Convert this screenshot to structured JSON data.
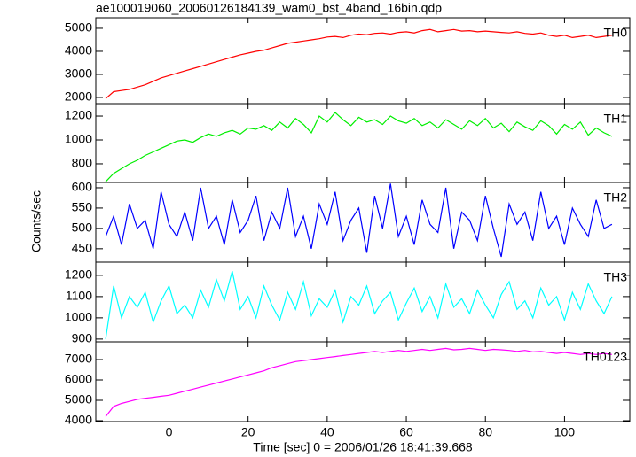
{
  "chart_data": {
    "type": "line",
    "title": "ae100019060_20060126184139_wam0_bst_4band_16bin.qdp",
    "xlabel": "Time [sec] 0 = 2006/01/26 18:41:39.668",
    "ylabel": "Counts/sec",
    "xlim": [
      -18.5,
      116.5
    ],
    "xticks": [
      0,
      20,
      40,
      60,
      80,
      100
    ],
    "x": [
      -16,
      -14,
      -12,
      -10,
      -8,
      -6,
      -4,
      -2,
      0,
      2,
      4,
      6,
      8,
      10,
      12,
      14,
      16,
      18,
      20,
      22,
      24,
      26,
      28,
      30,
      32,
      34,
      36,
      38,
      40,
      42,
      44,
      46,
      48,
      50,
      52,
      54,
      56,
      58,
      60,
      62,
      64,
      66,
      68,
      70,
      72,
      74,
      76,
      78,
      80,
      82,
      84,
      86,
      88,
      90,
      92,
      94,
      96,
      98,
      100,
      102,
      104,
      106,
      108,
      110,
      112
    ],
    "panels": [
      {
        "name": "TH0",
        "color": "#ff0000",
        "ylim": [
          1730,
          5460
        ],
        "yticks": [
          2000,
          3000,
          4000,
          5000
        ],
        "values": [
          1950,
          2250,
          2300,
          2350,
          2450,
          2550,
          2700,
          2850,
          2950,
          3050,
          3150,
          3250,
          3350,
          3450,
          3550,
          3650,
          3750,
          3850,
          3920,
          4000,
          4050,
          4150,
          4250,
          4350,
          4400,
          4450,
          4500,
          4550,
          4620,
          4650,
          4600,
          4700,
          4750,
          4720,
          4780,
          4800,
          4750,
          4820,
          4850,
          4800,
          4900,
          4950,
          4850,
          4900,
          4950,
          4880,
          4900,
          4850,
          4880,
          4850,
          4820,
          4800,
          4850,
          4780,
          4750,
          4800,
          4700,
          4650,
          4700,
          4600,
          4650,
          4700,
          4600,
          4650,
          4700
        ]
      },
      {
        "name": "TH1",
        "color": "#00ee00",
        "ylim": [
          644,
          1304
        ],
        "yticks": [
          800,
          1000,
          1200
        ],
        "values": [
          650,
          720,
          760,
          800,
          830,
          870,
          900,
          930,
          960,
          990,
          1000,
          980,
          1020,
          1050,
          1030,
          1060,
          1080,
          1050,
          1100,
          1090,
          1120,
          1080,
          1150,
          1100,
          1180,
          1130,
          1060,
          1200,
          1150,
          1230,
          1170,
          1120,
          1190,
          1150,
          1170,
          1130,
          1200,
          1160,
          1140,
          1180,
          1120,
          1150,
          1100,
          1170,
          1130,
          1090,
          1160,
          1120,
          1180,
          1100,
          1140,
          1070,
          1150,
          1110,
          1080,
          1160,
          1120,
          1050,
          1130,
          1090,
          1150,
          1040,
          1100,
          1060,
          1030
        ]
      },
      {
        "name": "TH2",
        "color": "#0000ff",
        "ylim": [
          417,
          613
        ],
        "yticks": [
          450,
          500,
          550,
          600
        ],
        "values": [
          480,
          530,
          460,
          560,
          500,
          520,
          450,
          590,
          510,
          480,
          540,
          470,
          600,
          500,
          530,
          460,
          570,
          490,
          520,
          580,
          470,
          540,
          500,
          600,
          480,
          530,
          450,
          560,
          510,
          590,
          470,
          520,
          550,
          440,
          580,
          500,
          610,
          480,
          530,
          460,
          570,
          510,
          490,
          600,
          450,
          540,
          520,
          470,
          580,
          500,
          430,
          560,
          510,
          540,
          470,
          590,
          500,
          530,
          460,
          550,
          510,
          480,
          570,
          500,
          510
        ]
      },
      {
        "name": "TH3",
        "color": "#00ffff",
        "ylim": [
          887,
          1262
        ],
        "yticks": [
          900,
          1000,
          1100,
          1200
        ],
        "values": [
          900,
          1150,
          1000,
          1100,
          1050,
          1120,
          980,
          1080,
          1150,
          1020,
          1060,
          1000,
          1130,
          1050,
          1180,
          1080,
          1220,
          1040,
          1100,
          1000,
          1150,
          1060,
          990,
          1120,
          1040,
          1170,
          1010,
          1090,
          1050,
          1130,
          980,
          1100,
          1060,
          1150,
          1020,
          1080,
          1120,
          990,
          1070,
          1140,
          1030,
          1100,
          1000,
          1160,
          1050,
          1090,
          1020,
          1130,
          1060,
          1000,
          1110,
          1170,
          1040,
          1080,
          1000,
          1140,
          1060,
          1100,
          990,
          1120,
          1040,
          1160,
          1080,
          1020,
          1100
        ]
      },
      {
        "name": "TH0123",
        "color": "#ff00ff",
        "ylim": [
          3957,
          7870
        ],
        "yticks": [
          4000,
          5000,
          6000,
          7000
        ],
        "values": [
          4200,
          4700,
          4850,
          4950,
          5050,
          5100,
          5150,
          5200,
          5250,
          5350,
          5450,
          5550,
          5650,
          5750,
          5850,
          5950,
          6050,
          6150,
          6250,
          6350,
          6450,
          6600,
          6700,
          6800,
          6900,
          6950,
          7000,
          7050,
          7100,
          7150,
          7200,
          7250,
          7300,
          7350,
          7400,
          7350,
          7400,
          7450,
          7400,
          7450,
          7500,
          7450,
          7500,
          7550,
          7480,
          7500,
          7550,
          7500,
          7450,
          7500,
          7480,
          7450,
          7400,
          7450,
          7380,
          7400,
          7350,
          7300,
          7350,
          7300,
          7250,
          7300,
          7250,
          7300,
          7250
        ]
      }
    ]
  }
}
